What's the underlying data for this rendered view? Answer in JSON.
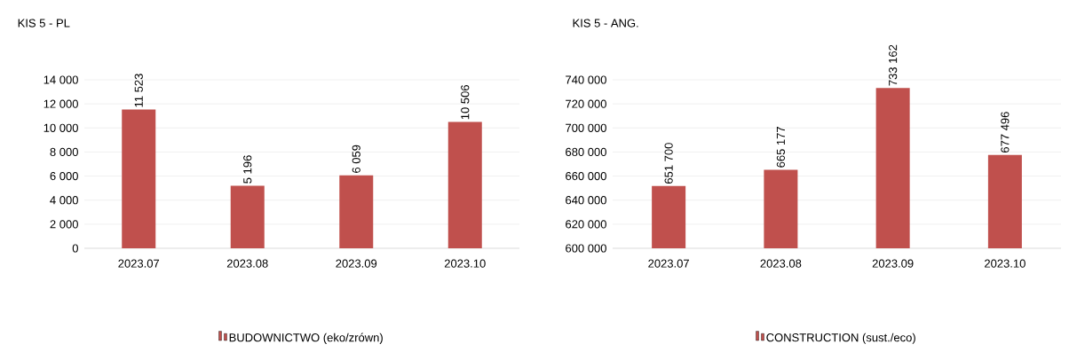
{
  "chart_data": [
    {
      "type": "bar",
      "title": "KIS 5 - PL",
      "categories": [
        "2023.07",
        "2023.08",
        "2023.09",
        "2023.10"
      ],
      "series": [
        {
          "name": "BUDOWNICTWO (eko/zrówn)",
          "color": "#c0504d",
          "values": [
            11523,
            5196,
            6059,
            10506
          ],
          "value_labels": [
            "11 523",
            "5 196",
            "6 059",
            "10 506"
          ]
        }
      ],
      "ylim": [
        0,
        14000
      ],
      "yticks": [
        0,
        {
          "value": 2000,
          "label": "2 000"
        },
        {
          "value": 4000,
          "label": "4 000"
        },
        {
          "value": 6000,
          "label": "6 000"
        },
        {
          "value": 8000,
          "label": "8 000"
        },
        {
          "value": 10000,
          "label": "10 000"
        },
        {
          "value": 12000,
          "label": "12 000"
        },
        {
          "value": 14000,
          "label": "14 000"
        }
      ],
      "grid": "y",
      "legend": "bottom"
    },
    {
      "type": "bar",
      "title": "KIS 5 - ANG.",
      "categories": [
        "2023.07",
        "2023.08",
        "2023.09",
        "2023.10"
      ],
      "series": [
        {
          "name": "CONSTRUCTION (sust./eco)",
          "color": "#c0504d",
          "values": [
            651700,
            665177,
            733162,
            677496
          ],
          "value_labels": [
            "651 700",
            "665 177",
            "733 162",
            "677 496"
          ]
        }
      ],
      "ylim": [
        600000,
        740000
      ],
      "yticks": [
        {
          "value": 600000,
          "label": "600 000"
        },
        {
          "value": 620000,
          "label": "620 000"
        },
        {
          "value": 640000,
          "label": "640 000"
        },
        {
          "value": 660000,
          "label": "660 000"
        },
        {
          "value": 680000,
          "label": "680 000"
        },
        {
          "value": 700000,
          "label": "700 000"
        },
        {
          "value": 720000,
          "label": "720 000"
        },
        {
          "value": 740000,
          "label": "740 000"
        }
      ],
      "grid": "y",
      "legend": "bottom"
    }
  ]
}
